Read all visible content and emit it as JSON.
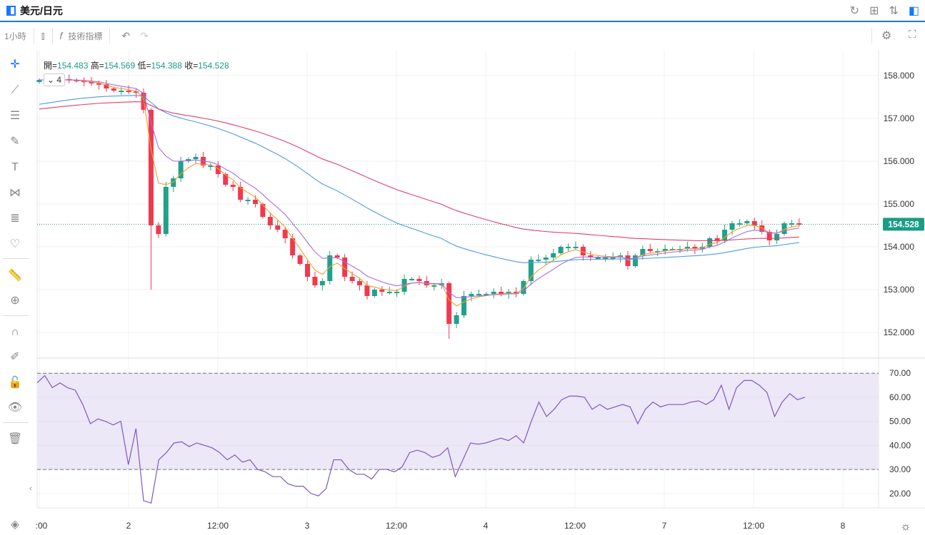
{
  "header": {
    "symbol": "美元/日元",
    "icons": [
      "refresh-icon",
      "grid-icon",
      "sort-icon",
      "panel-icon"
    ]
  },
  "toolbar": {
    "interval": "1小時",
    "indicators": "技術指標"
  },
  "ohlc": {
    "open_label": "開=",
    "open": "154.483",
    "high_label": "高=",
    "high": "154.569",
    "low_label": "低=",
    "low": "154.388",
    "close_label": "收=",
    "close": "154.528"
  },
  "ma_toggle": "4",
  "colors": {
    "up": "#22a08a",
    "down": "#f0394f",
    "ma1": "#f0a030",
    "ma2": "#a86ee0",
    "ma3": "#4c9be8",
    "ma4": "#e0406a",
    "rsi": "#7e57c2",
    "accent": "#1677ff"
  },
  "chart_data": {
    "type": "candlestick",
    "price_ylim": [
      151.4,
      158.6
    ],
    "price_ticks": [
      "152.000",
      "153.000",
      "154.000",
      "155.000",
      "156.000",
      "157.000",
      "158.000"
    ],
    "last_price": "154.528",
    "x_tick_labels": [
      ":00",
      "2",
      "12:00",
      "3",
      "12:00",
      "4",
      "12:00",
      "7",
      "12:00",
      "8"
    ],
    "closes": [
      157.9,
      157.9,
      157.88,
      157.92,
      157.9,
      157.88,
      157.85,
      157.82,
      157.8,
      157.7,
      157.65,
      157.65,
      157.63,
      157.6,
      157.2,
      154.5,
      154.3,
      155.4,
      155.6,
      156.0,
      156.05,
      156.1,
      155.9,
      155.9,
      155.7,
      155.45,
      155.4,
      155.1,
      155.1,
      155.0,
      154.7,
      154.5,
      154.4,
      154.2,
      153.8,
      153.6,
      153.3,
      153.1,
      153.2,
      153.8,
      153.75,
      153.3,
      153.2,
      153.1,
      152.85,
      153.0,
      152.95,
      152.95,
      152.95,
      153.25,
      153.25,
      153.2,
      153.1,
      153.1,
      153.15,
      152.2,
      152.4,
      152.85,
      152.9,
      152.9,
      152.9,
      152.95,
      152.9,
      152.95,
      152.9,
      153.2,
      153.7,
      153.7,
      153.75,
      153.85,
      154.0,
      154.0,
      154.0,
      153.8,
      153.75,
      153.75,
      153.75,
      153.75,
      153.8,
      153.55,
      153.8,
      153.95,
      153.9,
      153.9,
      153.95,
      153.95,
      153.95,
      154.0,
      153.95,
      154.0,
      154.2,
      154.15,
      154.4,
      154.55,
      154.55,
      154.6,
      154.5,
      154.35,
      154.15,
      154.3,
      154.55,
      154.55,
      154.53
    ],
    "first_open": 157.85,
    "moving_averages": [
      {
        "period": 4,
        "seed": 157.9
      },
      {
        "period": 8,
        "seed": 157.9
      },
      {
        "period": 40,
        "seed": 157.3
      },
      {
        "period": 70,
        "seed": 157.2
      }
    ],
    "rsi": {
      "ylim": [
        14,
        76
      ],
      "upper": 70,
      "lower": 30,
      "ticks": [
        "20.00",
        "30.00",
        "40.00",
        "50.00",
        "60.00",
        "70.00"
      ],
      "values": [
        66,
        69,
        64,
        66,
        64,
        63,
        57,
        49,
        51,
        50,
        48.5,
        50,
        32,
        47,
        17,
        16,
        34,
        37,
        41,
        41.5,
        39.5,
        41,
        40,
        39,
        37,
        34,
        36,
        33,
        34,
        30,
        29,
        27,
        27,
        24,
        23,
        23,
        20,
        19,
        22,
        34,
        34,
        30,
        28,
        28,
        26,
        30,
        30,
        29,
        31,
        37,
        38,
        37,
        35,
        36,
        39,
        27,
        34,
        41,
        40.5,
        41,
        42,
        43,
        42,
        44,
        41,
        50,
        58,
        52,
        55,
        59,
        60.5,
        60.5,
        60,
        55,
        57,
        55,
        56,
        57,
        56,
        49,
        55,
        58,
        56,
        57,
        57,
        57,
        58,
        58.5,
        57,
        59,
        65,
        55,
        64,
        67,
        67,
        65,
        62,
        52,
        58,
        61.5,
        59,
        60
      ]
    }
  }
}
